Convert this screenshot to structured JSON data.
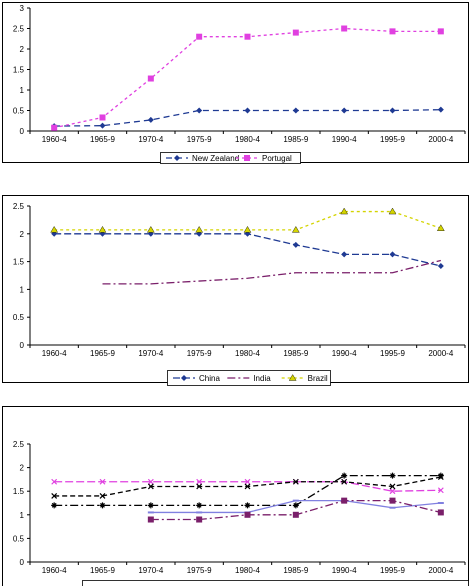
{
  "chart_data": [
    {
      "type": "line",
      "categories": [
        "1960-4",
        "1965-9",
        "1970-4",
        "1975-9",
        "1980-4",
        "1985-9",
        "1990-4",
        "1995-9",
        "2000-4"
      ],
      "ylim": [
        0,
        3
      ],
      "yticks": [
        "0",
        "0.5",
        "1",
        "1.5",
        "2",
        "2.5",
        "3"
      ],
      "legend_placement": "bottom",
      "grid": false,
      "series": [
        {
          "name": "New Zealand",
          "color": "#1f3a93",
          "values": [
            0.12,
            0.13,
            0.27,
            0.5,
            0.5,
            0.5,
            0.5,
            0.5,
            0.52
          ]
        },
        {
          "name": "Portugal",
          "color": "#e040e0",
          "values": [
            0.08,
            0.33,
            1.28,
            2.3,
            2.3,
            2.4,
            2.5,
            2.43,
            2.43
          ]
        }
      ]
    },
    {
      "type": "line",
      "categories": [
        "1960-4",
        "1965-9",
        "1970-4",
        "1975-9",
        "1980-4",
        "1985-9",
        "1990-4",
        "1995-9",
        "2000-4"
      ],
      "ylim": [
        0,
        2.5
      ],
      "yticks": [
        "0",
        "0.5",
        "1",
        "1.5",
        "2",
        "2.5"
      ],
      "legend_placement": "bottom",
      "grid": false,
      "series": [
        {
          "name": "China",
          "color": "#1f3a93",
          "values": [
            2.0,
            2.0,
            2.0,
            2.0,
            2.0,
            1.8,
            1.63,
            1.63,
            1.42
          ]
        },
        {
          "name": "India",
          "color": "#7a1f6a",
          "values": [
            null,
            1.1,
            1.1,
            1.15,
            1.2,
            1.3,
            1.3,
            1.3,
            1.52
          ]
        },
        {
          "name": "Brazil",
          "color": "#d4d400",
          "values": [
            2.07,
            2.07,
            2.07,
            2.07,
            2.07,
            2.07,
            2.4,
            2.4,
            2.1
          ]
        }
      ]
    },
    {
      "type": "line",
      "categories": [
        "1960-4",
        "1965-9",
        "1970-4",
        "1975-9",
        "1980-4",
        "1985-9",
        "1990-4",
        "1995-9",
        "2000-4"
      ],
      "ylim": [
        0,
        2.5
      ],
      "yticks": [
        "0",
        "0.5",
        "1",
        "1.5",
        "2",
        "2.5"
      ],
      "legend_placement": "bottom",
      "grid": false,
      "series": [
        {
          "color": "#e040e0",
          "values": [
            1.7,
            1.7,
            1.7,
            1.7,
            1.7,
            1.7,
            1.7,
            1.5,
            1.52
          ]
        },
        {
          "color": "#000000",
          "values": [
            1.4,
            1.4,
            1.6,
            1.6,
            1.6,
            1.7,
            1.7,
            1.6,
            1.8
          ]
        },
        {
          "color": "#000000",
          "values": [
            1.2,
            1.2,
            1.2,
            1.2,
            1.2,
            1.2,
            1.83,
            1.83,
            1.83
          ]
        },
        {
          "color": "#8080e0",
          "values": [
            null,
            null,
            1.05,
            1.05,
            1.05,
            1.3,
            1.3,
            1.15,
            1.25
          ]
        },
        {
          "color": "#7a1f6a",
          "values": [
            null,
            null,
            0.9,
            0.9,
            1.0,
            1.0,
            1.3,
            1.3,
            1.05
          ]
        }
      ]
    }
  ]
}
